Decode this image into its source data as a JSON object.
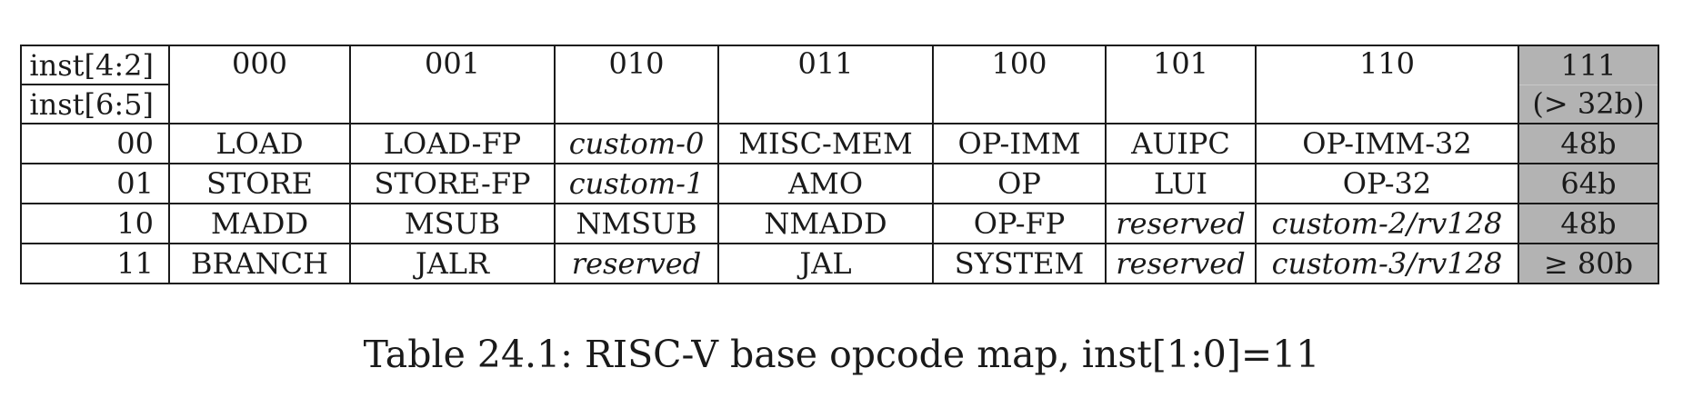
{
  "table": {
    "header": {
      "corner_top": "inst[4:2]",
      "corner_bottom": "inst[6:5]",
      "columns": [
        "000",
        "001",
        "010",
        "011",
        "100",
        "101",
        "110",
        "111"
      ],
      "last_column_note": "(> 32b)"
    },
    "rows": [
      {
        "key": "00",
        "cells": [
          {
            "text": "LOAD",
            "italic": false
          },
          {
            "text": "LOAD-FP",
            "italic": false
          },
          {
            "text": "custom-0",
            "italic": true
          },
          {
            "text": "MISC-MEM",
            "italic": false
          },
          {
            "text": "OP-IMM",
            "italic": false
          },
          {
            "text": "AUIPC",
            "italic": false
          },
          {
            "text": "OP-IMM-32",
            "italic": false
          },
          {
            "text": "48b",
            "italic": false
          }
        ]
      },
      {
        "key": "01",
        "cells": [
          {
            "text": "STORE",
            "italic": false
          },
          {
            "text": "STORE-FP",
            "italic": false
          },
          {
            "text": "custom-1",
            "italic": true
          },
          {
            "text": "AMO",
            "italic": false
          },
          {
            "text": "OP",
            "italic": false
          },
          {
            "text": "LUI",
            "italic": false
          },
          {
            "text": "OP-32",
            "italic": false
          },
          {
            "text": "64b",
            "italic": false
          }
        ]
      },
      {
        "key": "10",
        "cells": [
          {
            "text": "MADD",
            "italic": false
          },
          {
            "text": "MSUB",
            "italic": false
          },
          {
            "text": "NMSUB",
            "italic": false
          },
          {
            "text": "NMADD",
            "italic": false
          },
          {
            "text": "OP-FP",
            "italic": false
          },
          {
            "text": "reserved",
            "italic": true
          },
          {
            "text": "custom-2/rv128",
            "italic": true
          },
          {
            "text": "48b",
            "italic": false
          }
        ]
      },
      {
        "key": "11",
        "cells": [
          {
            "text": "BRANCH",
            "italic": false
          },
          {
            "text": "JALR",
            "italic": false
          },
          {
            "text": "reserved",
            "italic": true
          },
          {
            "text": "JAL",
            "italic": false
          },
          {
            "text": "SYSTEM",
            "italic": false
          },
          {
            "text": "reserved",
            "italic": true
          },
          {
            "text": "custom-3/rv128",
            "italic": true
          },
          {
            "text": "≥ 80b",
            "italic": false
          }
        ]
      }
    ],
    "shade_color": "#b3b3b3"
  },
  "caption": "Table 24.1: RISC-V base opcode map, inst[1:0]=11"
}
